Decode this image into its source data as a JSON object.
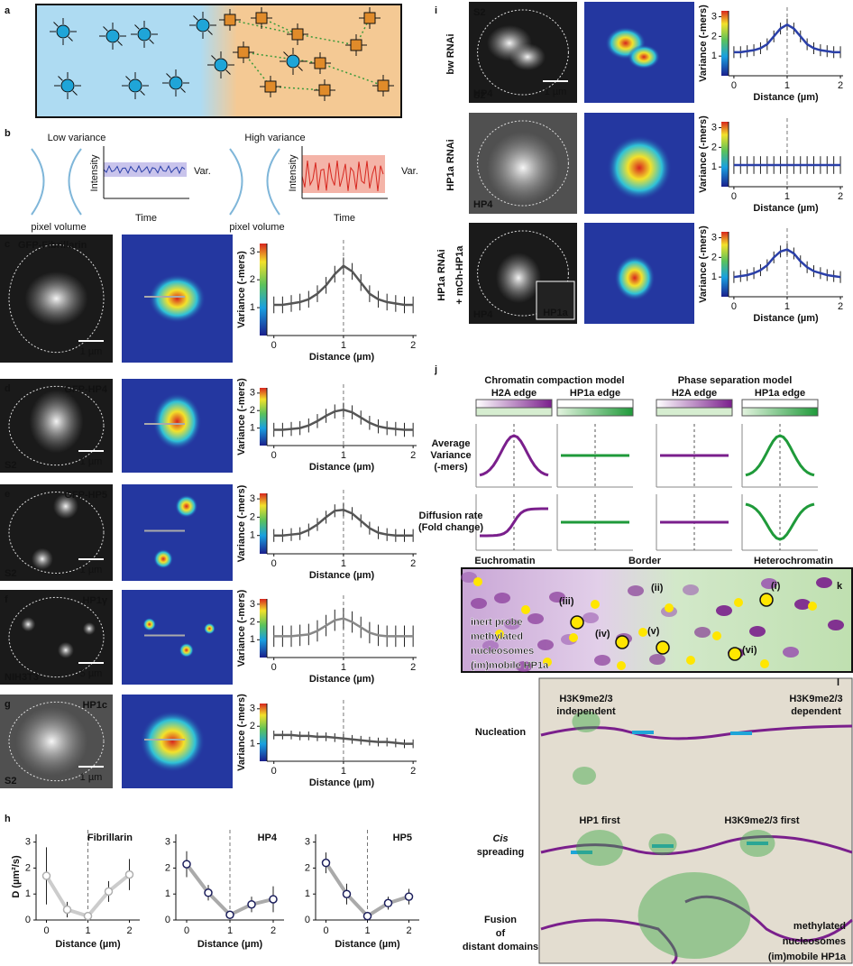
{
  "panel_labels": [
    "a",
    "b",
    "c",
    "d",
    "e",
    "f",
    "g",
    "h",
    "i",
    "j",
    "k",
    "l"
  ],
  "b": {
    "low": "Low variance",
    "high": "High variance",
    "y_label": "Intensity",
    "x_label": "Time",
    "var": "Var.",
    "pixel_volume": "pixel volume"
  },
  "axis_text": {
    "variance": "Variance (-mers)",
    "distance": "Distance (µm)",
    "diffusion": "D (µm²/s)"
  },
  "profile_x": [
    0,
    0.125,
    0.25,
    0.375,
    0.5,
    0.625,
    0.75,
    0.875,
    1,
    1.125,
    1.25,
    1.375,
    1.5,
    1.625,
    1.75,
    1.875,
    2
  ],
  "profile_xlim": [
    -0.1,
    2.05
  ],
  "profile_xticks": [
    0,
    1,
    2
  ],
  "profile_ylim": [
    0,
    3.3
  ],
  "profile_yticks": [
    1,
    2,
    3
  ],
  "profiles": [
    {
      "title": "GFP-Fibrillarin",
      "scale": "1 µm",
      "color": "#555555",
      "error": 0.3,
      "values": [
        1.1,
        1.1,
        1.15,
        1.2,
        1.3,
        1.5,
        1.8,
        2.2,
        2.5,
        2.3,
        1.9,
        1.5,
        1.3,
        1.2,
        1.15,
        1.1,
        1.1
      ]
    },
    {
      "title": "GFP-HP4",
      "cell": "S2",
      "scale": "1 µm",
      "color": "#555555",
      "error": 0.4,
      "values": [
        0.9,
        0.9,
        0.95,
        1.0,
        1.15,
        1.4,
        1.7,
        1.95,
        2.05,
        1.9,
        1.6,
        1.3,
        1.1,
        1.0,
        0.95,
        0.9,
        0.9
      ]
    },
    {
      "title": "GFP-HP5",
      "cell": "S2",
      "scale": "1 µm",
      "color": "#555555",
      "error": 0.35,
      "values": [
        1.0,
        1.0,
        1.05,
        1.1,
        1.3,
        1.6,
        2.0,
        2.35,
        2.4,
        2.2,
        1.8,
        1.4,
        1.15,
        1.05,
        1.0,
        1.0,
        1.0
      ]
    },
    {
      "title": "HP1γ",
      "cell": "NIH3T3",
      "scale": "5 µm",
      "color": "#888888",
      "error": 0.6,
      "values": [
        1.2,
        1.2,
        1.2,
        1.25,
        1.3,
        1.5,
        1.8,
        2.1,
        2.2,
        2.0,
        1.7,
        1.4,
        1.25,
        1.2,
        1.2,
        1.2,
        1.2
      ]
    },
    {
      "title": "HP1c",
      "cell": "S2",
      "scale": "1 µm",
      "color": "#555555",
      "error": 0.25,
      "values": [
        1.5,
        1.5,
        1.5,
        1.45,
        1.45,
        1.4,
        1.4,
        1.35,
        1.3,
        1.25,
        1.2,
        1.15,
        1.1,
        1.1,
        1.05,
        1.0,
        1.0
      ]
    },
    {
      "row": [
        "bw RNAi"
      ],
      "cell": "S2",
      "stain": "HP4",
      "scale": "1 µm",
      "color": "#2a3fa8",
      "error": 0.3,
      "values": [
        1.2,
        1.2,
        1.25,
        1.3,
        1.4,
        1.6,
        2.0,
        2.4,
        2.6,
        2.4,
        2.0,
        1.6,
        1.4,
        1.3,
        1.25,
        1.2,
        1.2
      ]
    },
    {
      "row": [
        "HP1a RNAi"
      ],
      "stain": "HP4",
      "color": "#2a3fa8",
      "error": 0.45,
      "values": [
        1.1,
        1.1,
        1.1,
        1.1,
        1.1,
        1.1,
        1.1,
        1.1,
        1.1,
        1.1,
        1.1,
        1.1,
        1.1,
        1.1,
        1.1,
        1.1,
        1.1
      ]
    },
    {
      "row": [
        "HP1a RNAi",
        "+ mCh-HP1a"
      ],
      "stain": "HP4",
      "inset": "HP1a",
      "color": "#2a3fa8",
      "error": 0.3,
      "values": [
        1.0,
        1.05,
        1.1,
        1.2,
        1.35,
        1.6,
        2.0,
        2.3,
        2.4,
        2.2,
        1.8,
        1.5,
        1.3,
        1.2,
        1.1,
        1.05,
        1.0
      ]
    }
  ],
  "diffusion": {
    "x": [
      0,
      0.5,
      1,
      1.5,
      2
    ],
    "xlim": [
      -0.25,
      2.25
    ],
    "xticks": [
      0,
      1,
      2
    ],
    "ylim": [
      0,
      3.3
    ],
    "yticks": [
      0,
      1,
      2,
      3
    ],
    "plots": [
      {
        "name": "Fibrillarin",
        "color": "#b0b0b0",
        "values": [
          1.7,
          0.4,
          0.15,
          1.1,
          1.75
        ],
        "errors": [
          1.1,
          0.3,
          0.1,
          0.4,
          0.6
        ]
      },
      {
        "name": "HP4",
        "color": "#1c1f5c",
        "values": [
          2.15,
          1.05,
          0.2,
          0.6,
          0.8
        ],
        "errors": [
          0.5,
          0.3,
          0.15,
          0.3,
          0.5
        ]
      },
      {
        "name": "HP5",
        "color": "#1c1f5c",
        "values": [
          2.2,
          1.0,
          0.15,
          0.65,
          0.9
        ],
        "errors": [
          0.4,
          0.4,
          0.1,
          0.25,
          0.3
        ]
      }
    ]
  },
  "j": {
    "compaction": "Chromatin compaction model",
    "phase": "Phase separation model",
    "h2a": "H2A edge",
    "hp1a": "HP1a edge",
    "variance": [
      "Average",
      "Variance",
      "(-mers)"
    ],
    "diffusion": [
      "Diffusion rate",
      "(Fold change)"
    ]
  },
  "k": {
    "eu": "Euchromatin",
    "border": "Border",
    "hetero": "Heterochromatin",
    "roman": [
      "(i)",
      "(ii)",
      "(iii)",
      "(iv)",
      "(v)",
      "(vi)"
    ],
    "legend": [
      "inert probe",
      "methylated",
      "nucleosomes",
      "(im)mobile HP1a"
    ]
  },
  "l": {
    "nucleation": "Nucleation",
    "cis": "Cis",
    "spreading": "spreading",
    "fusion": [
      "Fusion",
      "of",
      "distant domains"
    ],
    "independent": [
      "H3K9me2/3",
      "independent"
    ],
    "dependent": [
      "H3K9me2/3",
      "dependent"
    ],
    "hp1_first": "HP1 first",
    "h3_first": "H3K9me2/3 first",
    "legend": [
      "methylated",
      "nucleosomes",
      "(im)mobile HP1a"
    ]
  }
}
